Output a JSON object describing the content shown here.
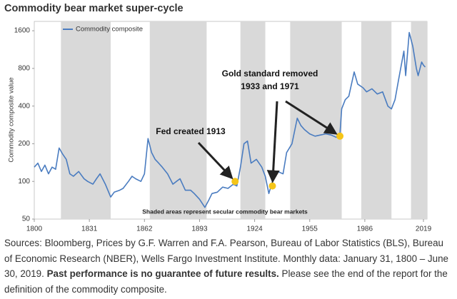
{
  "chart_data": {
    "type": "line",
    "title": "Commodity bear market super-cycle",
    "y_label": "Commodity composite value",
    "log_y": true,
    "xlim": [
      1800,
      2021
    ],
    "ylim": [
      50,
      1900
    ],
    "xticks": [
      1800,
      1831,
      1862,
      1893,
      1924,
      1955,
      1986,
      2019
    ],
    "yticks": [
      50,
      100,
      200,
      400,
      800,
      1600
    ],
    "legend": "top-left",
    "shaded_ranges": [
      [
        1815,
        1843
      ],
      [
        1865,
        1897
      ],
      [
        1916,
        1930
      ],
      [
        1944,
        1973
      ],
      [
        1984,
        2001
      ],
      [
        2012,
        2021
      ]
    ],
    "shade_color": "#d9d9d9",
    "shaded_note": "Shaded areas represent secular commodity bear markets",
    "x": [
      1800,
      1802,
      1804,
      1806,
      1808,
      1810,
      1812,
      1814,
      1816,
      1818,
      1820,
      1822,
      1825,
      1828,
      1830,
      1833,
      1835,
      1837,
      1840,
      1843,
      1845,
      1848,
      1850,
      1853,
      1855,
      1857,
      1860,
      1862,
      1864,
      1866,
      1868,
      1870,
      1872,
      1875,
      1878,
      1880,
      1882,
      1885,
      1888,
      1890,
      1893,
      1896,
      1898,
      1900,
      1903,
      1906,
      1909,
      1912,
      1914,
      1916,
      1918,
      1920,
      1922,
      1925,
      1928,
      1930,
      1932,
      1934,
      1937,
      1940,
      1942,
      1945,
      1948,
      1950,
      1952,
      1955,
      1958,
      1961,
      1964,
      1967,
      1970,
      1972,
      1973,
      1975,
      1977,
      1980,
      1982,
      1985,
      1987,
      1990,
      1993,
      1996,
      1999,
      2001,
      2003,
      2005,
      2008,
      2009,
      2011,
      2013,
      2015,
      2016,
      2018,
      2019,
      2020
    ],
    "series": [
      {
        "name": "Commodity composite",
        "color": "#4a7cc0",
        "values": [
          130,
          140,
          120,
          135,
          115,
          130,
          125,
          185,
          165,
          150,
          115,
          110,
          120,
          105,
          100,
          95,
          105,
          115,
          95,
          75,
          82,
          85,
          88,
          100,
          110,
          105,
          100,
          115,
          220,
          170,
          150,
          140,
          130,
          115,
          95,
          100,
          105,
          85,
          85,
          80,
          72,
          62,
          70,
          80,
          82,
          90,
          88,
          95,
          92,
          130,
          200,
          210,
          140,
          150,
          130,
          110,
          80,
          100,
          120,
          115,
          170,
          200,
          320,
          280,
          260,
          240,
          230,
          235,
          240,
          235,
          225,
          240,
          380,
          450,
          480,
          750,
          600,
          560,
          520,
          550,
          500,
          520,
          400,
          380,
          450,
          650,
          1100,
          700,
          1550,
          1200,
          800,
          700,
          900,
          850,
          820
        ]
      }
    ],
    "highlight_points": [
      {
        "x": 1913,
        "y": 100
      },
      {
        "x": 1934,
        "y": 92
      },
      {
        "x": 1972,
        "y": 230
      }
    ],
    "highlight_color": "#f5c518",
    "annotations": [
      {
        "lines": [
          "Fed created 1913"
        ]
      },
      {
        "lines": [
          "Gold standard removed",
          "1933 and 1971"
        ]
      }
    ]
  },
  "footer": {
    "source": "Sources: Bloomberg, Prices by G.F. Warren and F.A. Pearson, Bureau of Labor Statistics (BLS), Bureau of Economic Research (NBER), Wells Fargo Investment Institute. Monthly data: January 31, 1800 – June 30, 2019.",
    "disclaimer": "Past performance is no guarantee of future results.",
    "note": "Please see the end of the report for the definition of the commodity composite."
  }
}
